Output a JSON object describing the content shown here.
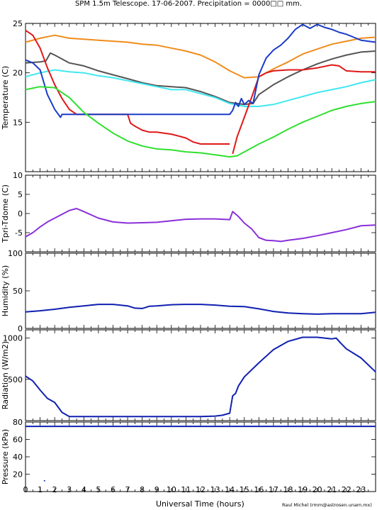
{
  "title": "SPM 1.5m Telescope. 17-06-2007. Precipitation = 0000□□ mm.",
  "xlabel": "Universal Time (hours)",
  "credit": "Raul Michel (rmm@astrosen.unam.mx)",
  "xticks": [
    "0",
    "1",
    "2",
    "3",
    "4",
    "5",
    "6",
    "7",
    "8",
    "9",
    "10",
    "11",
    "12",
    "13",
    "14",
    "15",
    "16",
    "17",
    "18",
    "19",
    "20",
    "21",
    "22",
    "23"
  ],
  "colors": {
    "orange": "#f08c1c",
    "darkgray": "#555555",
    "cyan": "#40e8f0",
    "red": "#e01818",
    "blue": "#1a3cc8",
    "green": "#30e030",
    "purple": "#8a30d8",
    "navy": "#1020b0"
  },
  "chart_data": [
    {
      "type": "line",
      "ylabel": "Temperature (C)",
      "xlim": [
        0,
        24
      ],
      "ylim": [
        10,
        25
      ],
      "yticks": [
        "15",
        "20",
        "25"
      ],
      "series": [
        {
          "color": "orange",
          "x": [
            0,
            1,
            2,
            3,
            4,
            5,
            6,
            7,
            8,
            9,
            10,
            11,
            12,
            13,
            14,
            15,
            16,
            17,
            18,
            19,
            20,
            21,
            22,
            23,
            24
          ],
          "y": [
            23.1,
            23.5,
            23.8,
            23.5,
            23.4,
            23.3,
            23.2,
            23.1,
            22.9,
            22.8,
            22.5,
            22.2,
            21.8,
            21.1,
            20.2,
            19.5,
            19.6,
            20.4,
            21.1,
            21.9,
            22.4,
            22.9,
            23.2,
            23.5,
            23.6
          ]
        },
        {
          "color": "darkgray",
          "x": [
            0,
            1,
            1.4,
            1.7,
            2,
            3,
            4,
            5,
            6,
            7,
            8,
            9,
            10,
            11,
            12,
            13,
            14,
            15,
            15.6,
            16,
            17,
            18,
            19,
            20,
            21,
            22,
            23,
            24
          ],
          "y": [
            21,
            21.1,
            21.2,
            22,
            21.8,
            21,
            20.7,
            20.2,
            19.8,
            19.4,
            19,
            18.7,
            18.6,
            18.5,
            18.1,
            17.6,
            17,
            16.8,
            16.9,
            17.8,
            18.8,
            19.6,
            20.3,
            20.9,
            21.4,
            21.8,
            22.1,
            22.2
          ]
        },
        {
          "color": "cyan",
          "x": [
            0,
            1,
            2,
            3,
            4,
            5,
            6,
            7,
            8,
            9,
            10,
            11,
            12,
            13,
            14,
            15,
            16,
            17,
            18,
            19,
            20,
            21,
            22,
            23,
            24
          ],
          "y": [
            19.6,
            20,
            20.3,
            20.1,
            20,
            19.7,
            19.5,
            19.2,
            18.9,
            18.6,
            18.3,
            18.3,
            17.9,
            17.5,
            16.9,
            16.6,
            16.6,
            16.8,
            17.2,
            17.6,
            18,
            18.3,
            18.6,
            19,
            19.3
          ]
        },
        {
          "color": "red",
          "x": [
            0,
            0.5,
            1,
            1.5,
            2,
            2.5,
            3,
            3.5,
            4,
            5,
            6,
            6.5,
            7,
            7.2,
            7.5,
            8,
            8.5,
            9,
            9.5,
            10,
            10.5,
            11,
            11.5,
            12,
            13,
            14,
            14.1,
            14.2,
            14.5,
            15,
            15.5,
            16,
            16.5,
            17,
            18,
            19,
            20,
            21,
            21.5,
            22,
            23,
            24
          ],
          "y": [
            24.3,
            23.8,
            22.5,
            20.5,
            18.8,
            17.4,
            16.3,
            15.8,
            15.8,
            15.8,
            15.8,
            15.8,
            15.8,
            14.9,
            14.6,
            14.2,
            14,
            14,
            13.9,
            13.8,
            13.6,
            13.4,
            13.0,
            12.8,
            12.8,
            12.8,
            null,
            11.8,
            13.5,
            15.5,
            17.5,
            19.6,
            20,
            20.2,
            20.3,
            20.3,
            20.5,
            20.8,
            20.7,
            20.2,
            20.1,
            20.1
          ]
        },
        {
          "color": "blue",
          "x": [
            0,
            0.5,
            1,
            1.5,
            2,
            2.4,
            2.5,
            3,
            4,
            5,
            6,
            7,
            8,
            9,
            10,
            11,
            12,
            13,
            14,
            14.2,
            14.4,
            14.6,
            14.8,
            15,
            15.3,
            15.6,
            16,
            16.5,
            17,
            17.5,
            18,
            18.5,
            19,
            19.5,
            20,
            20.5,
            21,
            21.5,
            22,
            22.5,
            23,
            23.5,
            24
          ],
          "y": [
            21.3,
            21,
            20.3,
            17.8,
            16.3,
            15.5,
            15.8,
            15.8,
            15.8,
            15.8,
            15.8,
            15.8,
            15.8,
            15.8,
            15.8,
            15.8,
            15.8,
            15.8,
            15.8,
            16.2,
            17.0,
            16.6,
            17.4,
            16.8,
            17.2,
            16.9,
            19.8,
            21.5,
            22.3,
            22.8,
            23.5,
            24.4,
            24.9,
            24.5,
            24.9,
            24.6,
            24.4,
            24.1,
            23.9,
            23.6,
            23.3,
            23.2,
            23.1
          ]
        },
        {
          "color": "green",
          "x": [
            0,
            1,
            2,
            3,
            4,
            5,
            6,
            7,
            8,
            9,
            10,
            11,
            12,
            13,
            14,
            14.5,
            15,
            16,
            17,
            18,
            19,
            20,
            21,
            22,
            23,
            24
          ],
          "y": [
            18.3,
            18.6,
            18.5,
            17.5,
            16,
            14.9,
            13.9,
            13.1,
            12.6,
            12.3,
            12.2,
            12,
            11.9,
            11.7,
            11.5,
            11.6,
            12.0,
            12.8,
            13.5,
            14.3,
            15,
            15.6,
            16.2,
            16.6,
            16.9,
            17.1
          ]
        }
      ]
    },
    {
      "type": "line",
      "ylabel": "Tpri-Tdome (C)",
      "xlim": [
        0,
        24
      ],
      "ylim": [
        -10,
        10
      ],
      "yticks": [
        "-5",
        "0",
        "5",
        "10"
      ],
      "series": [
        {
          "color": "purple",
          "x": [
            0,
            0.5,
            1,
            1.5,
            2,
            2.5,
            3,
            3.5,
            4,
            5,
            6,
            7,
            8,
            9,
            10,
            11,
            12,
            13,
            14,
            14.2,
            14.6,
            15,
            15.5,
            16,
            16.5,
            17,
            17.5,
            18,
            19,
            20,
            21,
            22,
            23,
            24
          ],
          "y": [
            -6.1,
            -5,
            -3.5,
            -2.2,
            -1.2,
            -0.2,
            0.8,
            1.3,
            0.5,
            -1.2,
            -2.2,
            -2.5,
            -2.4,
            -2.3,
            -1.9,
            -1.5,
            -1.4,
            -1.4,
            -1.6,
            0.5,
            -0.8,
            -2.5,
            -4,
            -6.3,
            -7,
            -7.1,
            -7.3,
            -7,
            -6.5,
            -5.8,
            -5,
            -4.2,
            -3.2,
            -3
          ]
        }
      ]
    },
    {
      "type": "line",
      "ylabel": "Humidity (%)",
      "xlim": [
        0,
        24
      ],
      "ylim": [
        0,
        100
      ],
      "yticks": [
        "0",
        "50",
        "100"
      ],
      "series": [
        {
          "color": "navy",
          "x": [
            0,
            1,
            2,
            3,
            4,
            5,
            6,
            7,
            7.5,
            8,
            8.5,
            9,
            10,
            11,
            12,
            13,
            14,
            15,
            16,
            17,
            18,
            19,
            20,
            21,
            22,
            23,
            24
          ],
          "y": [
            22,
            23.5,
            25.5,
            28,
            30,
            32,
            32,
            30,
            27,
            26.5,
            29.5,
            30,
            31.5,
            32,
            32,
            31,
            29.5,
            29,
            26,
            22.5,
            20.5,
            19.5,
            19,
            19.5,
            19.5,
            19.5,
            21.5
          ]
        }
      ]
    },
    {
      "type": "line",
      "ylabel": "Radiation (W/m2)",
      "xlim": [
        0,
        24
      ],
      "ylim": [
        0,
        1100
      ],
      "yticks": [
        "500",
        "1000"
      ],
      "series": [
        {
          "color": "navy",
          "x": [
            0,
            0.5,
            1,
            1.5,
            2,
            2.5,
            3,
            4,
            5,
            6,
            7,
            8,
            9,
            10,
            11,
            12,
            13,
            13.5,
            14,
            14.2,
            14.4,
            14.6,
            15,
            16,
            17,
            18,
            19,
            20,
            21,
            21.3,
            21.6,
            22,
            23,
            24
          ],
          "y": [
            540,
            480,
            370,
            270,
            220,
            100,
            50,
            50,
            50,
            50,
            50,
            50,
            50,
            50,
            50,
            50,
            55,
            65,
            90,
            300,
            330,
            420,
            530,
            700,
            860,
            960,
            1010,
            1010,
            990,
            1000,
            940,
            870,
            760,
            590
          ]
        }
      ]
    },
    {
      "type": "line",
      "ylabel": "Pressure (kPa)",
      "xlim": [
        0,
        24
      ],
      "ylim": [
        0,
        80
      ],
      "yticks": [
        "20",
        "40",
        "60",
        "80"
      ],
      "series": [
        {
          "color": "navy",
          "x": [
            0,
            24
          ],
          "y": [
            75,
            75
          ]
        },
        {
          "color": "navy",
          "x": [
            1.3
          ],
          "y": [
            12.5
          ],
          "points": true
        }
      ]
    }
  ]
}
